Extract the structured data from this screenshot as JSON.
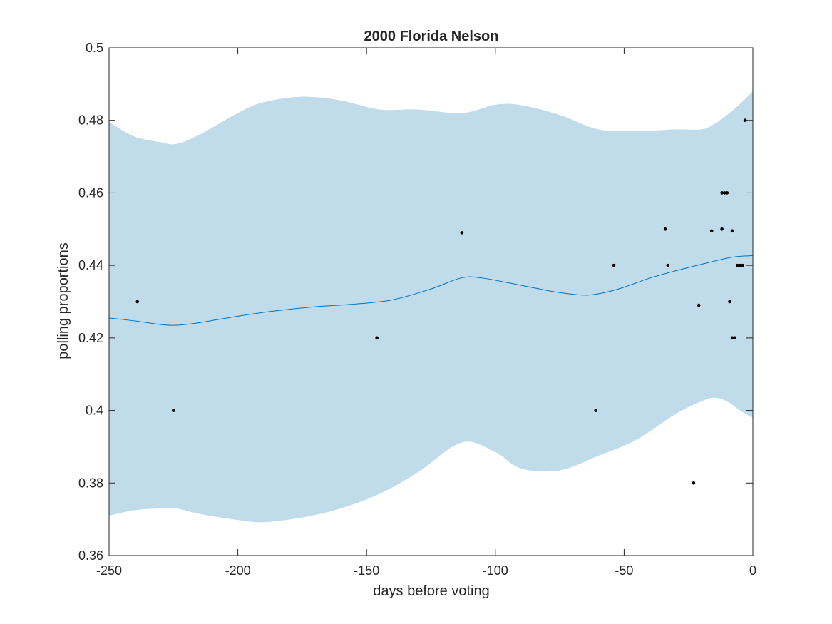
{
  "chart_data": {
    "type": "line",
    "title": "2000 Florida Nelson",
    "xlabel": "days before voting",
    "ylabel": "polling proportions",
    "xlim": [
      -250,
      0
    ],
    "ylim": [
      0.36,
      0.5
    ],
    "x_ticks": [
      -250,
      -200,
      -150,
      -100,
      -50,
      0
    ],
    "x_tick_labels": [
      "-250",
      "-200",
      "-150",
      "-100",
      "-50",
      "0"
    ],
    "y_ticks": [
      0.36,
      0.38,
      0.4,
      0.42,
      0.44,
      0.46,
      0.48,
      0.5
    ],
    "y_tick_labels": [
      "0.36",
      "0.38",
      "0.4",
      "0.42",
      "0.44",
      "0.46",
      "0.48",
      "0.5"
    ],
    "grid": false,
    "colors": {
      "band": "#c0dcea",
      "line": "#0072bd",
      "points": "#000000",
      "axes": "#262626"
    },
    "band": {
      "x": [
        -250,
        -240,
        -230,
        -224,
        -215,
        -200,
        -190,
        -175,
        -160,
        -145,
        -130,
        -113,
        -100,
        -90,
        -75,
        -60,
        -45,
        -30,
        -20,
        -15,
        -10,
        -5,
        0
      ],
      "upper": [
        0.4795,
        0.4755,
        0.474,
        0.4735,
        0.476,
        0.482,
        0.485,
        0.4865,
        0.4855,
        0.483,
        0.483,
        0.482,
        0.4843,
        0.4842,
        0.4815,
        0.4775,
        0.477,
        0.4775,
        0.4775,
        0.479,
        0.4815,
        0.4845,
        0.488
      ],
      "lower": [
        0.371,
        0.3725,
        0.373,
        0.373,
        0.3715,
        0.3698,
        0.3692,
        0.3705,
        0.373,
        0.377,
        0.383,
        0.3912,
        0.3885,
        0.384,
        0.3835,
        0.3875,
        0.392,
        0.399,
        0.4025,
        0.4035,
        0.4025,
        0.4,
        0.398
      ]
    },
    "series": [
      {
        "x": [
          -250,
          -240,
          -230,
          -224,
          -215,
          -200,
          -185,
          -170,
          -155,
          -140,
          -125,
          -113,
          -105,
          -95,
          -85,
          -75,
          -65,
          -57,
          -50,
          -40,
          -30,
          -20,
          -10,
          -5,
          0
        ],
        "values": [
          0.4255,
          0.4247,
          0.4237,
          0.4235,
          0.4242,
          0.426,
          0.4275,
          0.4286,
          0.4293,
          0.4305,
          0.4335,
          0.4366,
          0.4365,
          0.4352,
          0.4338,
          0.4325,
          0.4318,
          0.4326,
          0.434,
          0.4365,
          0.4385,
          0.4403,
          0.442,
          0.4425,
          0.4427
        ]
      }
    ],
    "points": {
      "x": [
        -239,
        -225,
        -146,
        -113,
        -61,
        -54,
        -34,
        -33,
        -23,
        -21,
        -16,
        -12,
        -12,
        -11,
        -10,
        -9,
        -8,
        -8,
        -7,
        -6,
        -5,
        -4,
        -3
      ],
      "y": [
        0.43,
        0.4,
        0.42,
        0.449,
        0.4,
        0.44,
        0.45,
        0.44,
        0.38,
        0.429,
        0.4495,
        0.46,
        0.45,
        0.46,
        0.46,
        0.43,
        0.4495,
        0.42,
        0.42,
        0.44,
        0.44,
        0.44,
        0.48
      ]
    }
  }
}
